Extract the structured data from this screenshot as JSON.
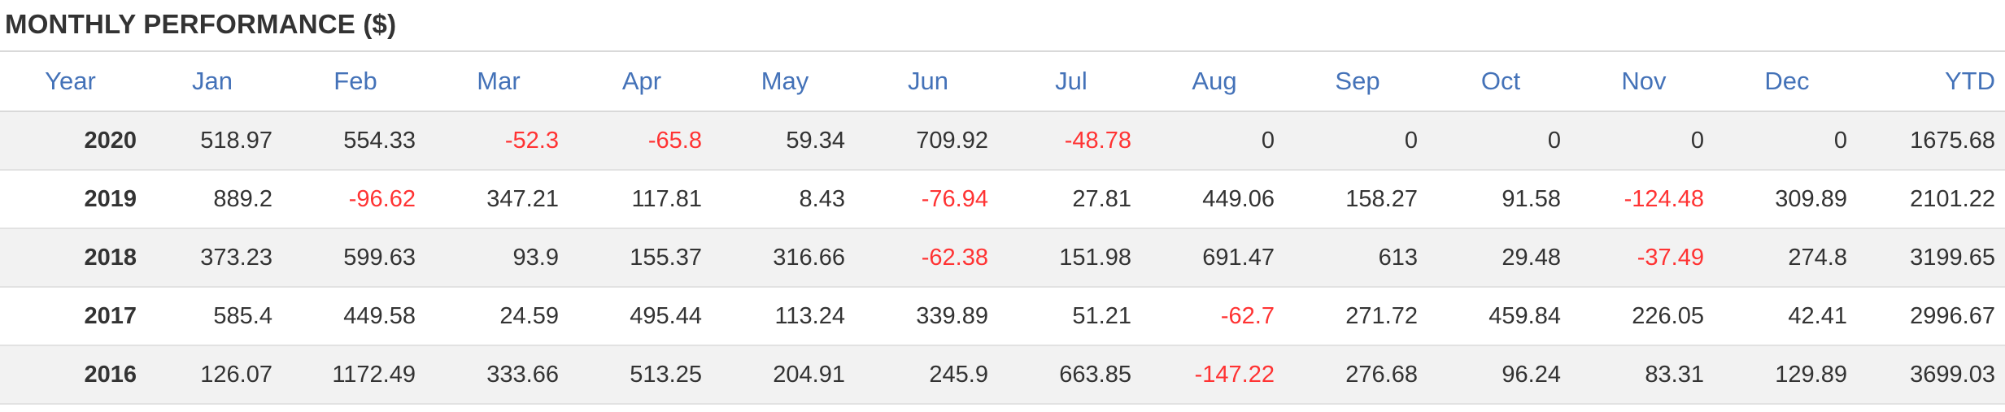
{
  "title": "MONTHLY PERFORMANCE ($)",
  "colors": {
    "title_text": "#333333",
    "header_text": "#4472b8",
    "body_text": "#333333",
    "negative_text": "#ff3333",
    "row_stripe": "#f2f2f2",
    "rule": "#d9d9d9"
  },
  "table": {
    "headers": [
      "Year",
      "Jan",
      "Feb",
      "Mar",
      "Apr",
      "May",
      "Jun",
      "Jul",
      "Aug",
      "Sep",
      "Oct",
      "Nov",
      "Dec",
      "YTD"
    ],
    "rows": [
      {
        "year": "2020",
        "cells": [
          "518.97",
          "554.33",
          "-52.3",
          "-65.8",
          "59.34",
          "709.92",
          "-48.78",
          "0",
          "0",
          "0",
          "0",
          "0"
        ],
        "ytd": "1675.68"
      },
      {
        "year": "2019",
        "cells": [
          "889.2",
          "-96.62",
          "347.21",
          "117.81",
          "8.43",
          "-76.94",
          "27.81",
          "449.06",
          "158.27",
          "91.58",
          "-124.48",
          "309.89"
        ],
        "ytd": "2101.22"
      },
      {
        "year": "2018",
        "cells": [
          "373.23",
          "599.63",
          "93.9",
          "155.37",
          "316.66",
          "-62.38",
          "151.98",
          "691.47",
          "613",
          "29.48",
          "-37.49",
          "274.8"
        ],
        "ytd": "3199.65"
      },
      {
        "year": "2017",
        "cells": [
          "585.4",
          "449.58",
          "24.59",
          "495.44",
          "113.24",
          "339.89",
          "51.21",
          "-62.7",
          "271.72",
          "459.84",
          "226.05",
          "42.41"
        ],
        "ytd": "2996.67"
      },
      {
        "year": "2016",
        "cells": [
          "126.07",
          "1172.49",
          "333.66",
          "513.25",
          "204.91",
          "245.9",
          "663.85",
          "-147.22",
          "276.68",
          "96.24",
          "83.31",
          "129.89"
        ],
        "ytd": "3699.03"
      }
    ]
  }
}
